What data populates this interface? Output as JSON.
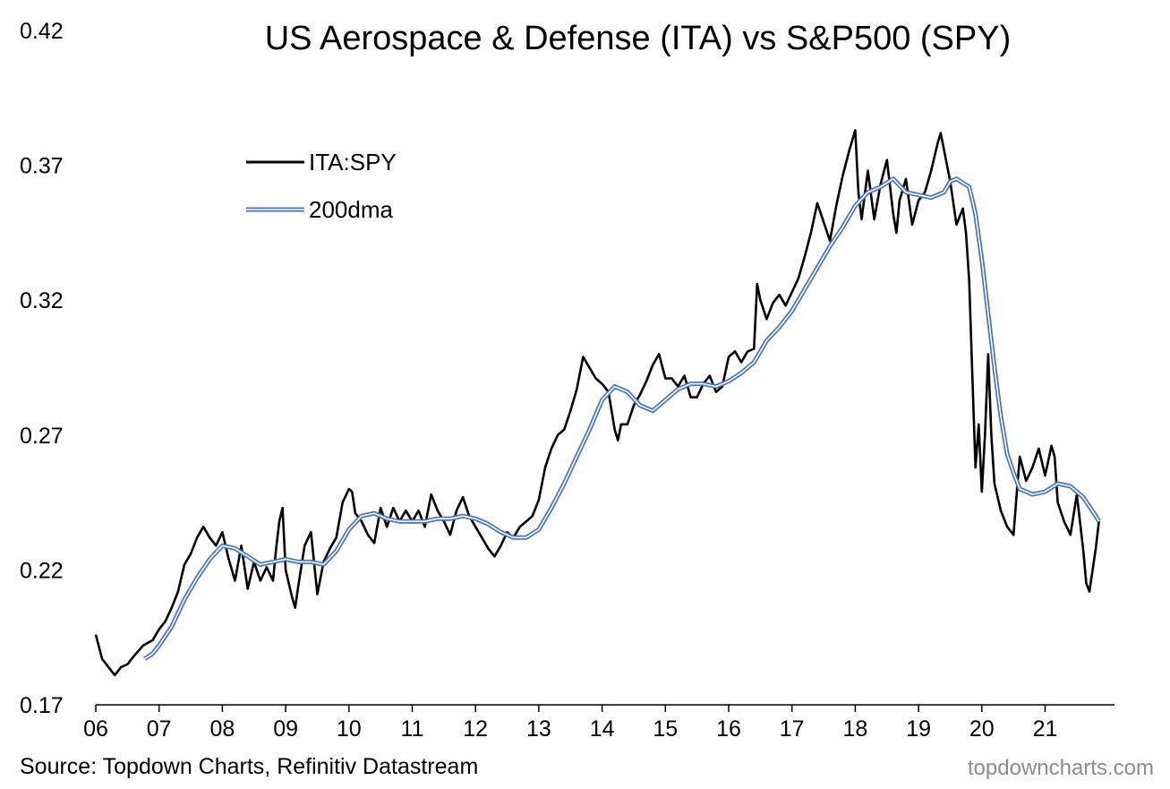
{
  "chart_data": {
    "type": "line",
    "title": "US Aerospace & Defense (ITA) vs S&P500 (SPY)",
    "xlabel": "",
    "ylabel": "",
    "x_ticks": [
      "06",
      "07",
      "08",
      "09",
      "10",
      "11",
      "12",
      "13",
      "14",
      "15",
      "16",
      "17",
      "18",
      "19",
      "20",
      "21"
    ],
    "xlim": [
      2006.0,
      2021.9
    ],
    "ylim": [
      0.17,
      0.42
    ],
    "y_ticks": [
      0.17,
      0.22,
      0.27,
      0.32,
      0.37,
      0.42
    ],
    "grid": false,
    "legend_position": "top-left",
    "series": [
      {
        "name": "ITA:SPY",
        "color": "#000000",
        "points": [
          [
            2006.0,
            0.196
          ],
          [
            2006.1,
            0.187
          ],
          [
            2006.2,
            0.184
          ],
          [
            2006.3,
            0.181
          ],
          [
            2006.4,
            0.184
          ],
          [
            2006.5,
            0.185
          ],
          [
            2006.6,
            0.188
          ],
          [
            2006.75,
            0.192
          ],
          [
            2006.9,
            0.194
          ],
          [
            2007.0,
            0.198
          ],
          [
            2007.1,
            0.201
          ],
          [
            2007.2,
            0.206
          ],
          [
            2007.3,
            0.212
          ],
          [
            2007.4,
            0.222
          ],
          [
            2007.5,
            0.226
          ],
          [
            2007.6,
            0.232
          ],
          [
            2007.7,
            0.236
          ],
          [
            2007.8,
            0.232
          ],
          [
            2007.9,
            0.229
          ],
          [
            2008.0,
            0.234
          ],
          [
            2008.1,
            0.224
          ],
          [
            2008.2,
            0.216
          ],
          [
            2008.3,
            0.229
          ],
          [
            2008.4,
            0.213
          ],
          [
            2008.5,
            0.223
          ],
          [
            2008.6,
            0.216
          ],
          [
            2008.7,
            0.221
          ],
          [
            2008.8,
            0.216
          ],
          [
            2008.85,
            0.228
          ],
          [
            2008.9,
            0.238
          ],
          [
            2008.95,
            0.243
          ],
          [
            2009.0,
            0.22
          ],
          [
            2009.1,
            0.21
          ],
          [
            2009.15,
            0.206
          ],
          [
            2009.2,
            0.214
          ],
          [
            2009.3,
            0.229
          ],
          [
            2009.4,
            0.234
          ],
          [
            2009.5,
            0.211
          ],
          [
            2009.6,
            0.223
          ],
          [
            2009.7,
            0.228
          ],
          [
            2009.8,
            0.232
          ],
          [
            2009.9,
            0.245
          ],
          [
            2010.0,
            0.25
          ],
          [
            2010.05,
            0.249
          ],
          [
            2010.1,
            0.241
          ],
          [
            2010.2,
            0.238
          ],
          [
            2010.3,
            0.233
          ],
          [
            2010.4,
            0.23
          ],
          [
            2010.5,
            0.243
          ],
          [
            2010.6,
            0.236
          ],
          [
            2010.7,
            0.243
          ],
          [
            2010.8,
            0.238
          ],
          [
            2010.9,
            0.242
          ],
          [
            2011.0,
            0.238
          ],
          [
            2011.1,
            0.242
          ],
          [
            2011.2,
            0.236
          ],
          [
            2011.3,
            0.248
          ],
          [
            2011.4,
            0.242
          ],
          [
            2011.5,
            0.238
          ],
          [
            2011.6,
            0.233
          ],
          [
            2011.7,
            0.242
          ],
          [
            2011.8,
            0.247
          ],
          [
            2011.9,
            0.24
          ],
          [
            2012.0,
            0.236
          ],
          [
            2012.1,
            0.232
          ],
          [
            2012.2,
            0.228
          ],
          [
            2012.3,
            0.225
          ],
          [
            2012.4,
            0.229
          ],
          [
            2012.5,
            0.234
          ],
          [
            2012.6,
            0.232
          ],
          [
            2012.7,
            0.236
          ],
          [
            2012.8,
            0.238
          ],
          [
            2012.9,
            0.24
          ],
          [
            2013.0,
            0.246
          ],
          [
            2013.1,
            0.258
          ],
          [
            2013.2,
            0.265
          ],
          [
            2013.3,
            0.27
          ],
          [
            2013.4,
            0.272
          ],
          [
            2013.5,
            0.279
          ],
          [
            2013.6,
            0.287
          ],
          [
            2013.7,
            0.299
          ],
          [
            2013.8,
            0.295
          ],
          [
            2013.9,
            0.291
          ],
          [
            2014.0,
            0.289
          ],
          [
            2014.1,
            0.286
          ],
          [
            2014.2,
            0.272
          ],
          [
            2014.25,
            0.268
          ],
          [
            2014.3,
            0.274
          ],
          [
            2014.4,
            0.274
          ],
          [
            2014.5,
            0.281
          ],
          [
            2014.6,
            0.285
          ],
          [
            2014.7,
            0.29
          ],
          [
            2014.8,
            0.296
          ],
          [
            2014.9,
            0.3
          ],
          [
            2015.0,
            0.291
          ],
          [
            2015.1,
            0.291
          ],
          [
            2015.2,
            0.288
          ],
          [
            2015.3,
            0.292
          ],
          [
            2015.4,
            0.284
          ],
          [
            2015.5,
            0.284
          ],
          [
            2015.6,
            0.289
          ],
          [
            2015.7,
            0.292
          ],
          [
            2015.8,
            0.286
          ],
          [
            2015.9,
            0.288
          ],
          [
            2016.0,
            0.299
          ],
          [
            2016.1,
            0.301
          ],
          [
            2016.2,
            0.297
          ],
          [
            2016.3,
            0.301
          ],
          [
            2016.4,
            0.302
          ],
          [
            2016.45,
            0.326
          ],
          [
            2016.5,
            0.32
          ],
          [
            2016.6,
            0.313
          ],
          [
            2016.7,
            0.319
          ],
          [
            2016.8,
            0.322
          ],
          [
            2016.9,
            0.318
          ],
          [
            2017.0,
            0.323
          ],
          [
            2017.1,
            0.328
          ],
          [
            2017.2,
            0.336
          ],
          [
            2017.3,
            0.345
          ],
          [
            2017.4,
            0.356
          ],
          [
            2017.5,
            0.349
          ],
          [
            2017.6,
            0.342
          ],
          [
            2017.7,
            0.355
          ],
          [
            2017.8,
            0.366
          ],
          [
            2017.9,
            0.375
          ],
          [
            2018.0,
            0.383
          ],
          [
            2018.05,
            0.36
          ],
          [
            2018.1,
            0.35
          ],
          [
            2018.2,
            0.368
          ],
          [
            2018.3,
            0.35
          ],
          [
            2018.4,
            0.363
          ],
          [
            2018.5,
            0.372
          ],
          [
            2018.6,
            0.352
          ],
          [
            2018.65,
            0.345
          ],
          [
            2018.7,
            0.357
          ],
          [
            2018.8,
            0.365
          ],
          [
            2018.9,
            0.348
          ],
          [
            2019.0,
            0.357
          ],
          [
            2019.1,
            0.36
          ],
          [
            2019.2,
            0.368
          ],
          [
            2019.3,
            0.378
          ],
          [
            2019.35,
            0.382
          ],
          [
            2019.4,
            0.376
          ],
          [
            2019.5,
            0.364
          ],
          [
            2019.6,
            0.348
          ],
          [
            2019.7,
            0.354
          ],
          [
            2019.75,
            0.345
          ],
          [
            2019.8,
            0.327
          ],
          [
            2019.85,
            0.292
          ],
          [
            2019.9,
            0.258
          ],
          [
            2019.95,
            0.274
          ],
          [
            2020.0,
            0.249
          ],
          [
            2020.05,
            0.27
          ],
          [
            2020.1,
            0.3
          ],
          [
            2020.15,
            0.27
          ],
          [
            2020.2,
            0.252
          ],
          [
            2020.3,
            0.242
          ],
          [
            2020.4,
            0.236
          ],
          [
            2020.5,
            0.233
          ],
          [
            2020.55,
            0.248
          ],
          [
            2020.6,
            0.262
          ],
          [
            2020.7,
            0.253
          ],
          [
            2020.8,
            0.258
          ],
          [
            2020.9,
            0.265
          ],
          [
            2021.0,
            0.255
          ],
          [
            2021.1,
            0.266
          ],
          [
            2021.15,
            0.262
          ],
          [
            2021.2,
            0.245
          ],
          [
            2021.3,
            0.238
          ],
          [
            2021.4,
            0.233
          ],
          [
            2021.5,
            0.248
          ],
          [
            2021.55,
            0.238
          ],
          [
            2021.6,
            0.228
          ],
          [
            2021.65,
            0.215
          ],
          [
            2021.7,
            0.212
          ],
          [
            2021.8,
            0.228
          ],
          [
            2021.85,
            0.238
          ]
        ]
      },
      {
        "name": "200dma",
        "color": "#4472c4",
        "points": [
          [
            2006.77,
            0.187
          ],
          [
            2006.9,
            0.189
          ],
          [
            2007.0,
            0.192
          ],
          [
            2007.2,
            0.199
          ],
          [
            2007.4,
            0.209
          ],
          [
            2007.6,
            0.217
          ],
          [
            2007.8,
            0.224
          ],
          [
            2008.0,
            0.229
          ],
          [
            2008.2,
            0.228
          ],
          [
            2008.4,
            0.225
          ],
          [
            2008.6,
            0.222
          ],
          [
            2008.8,
            0.223
          ],
          [
            2009.0,
            0.224
          ],
          [
            2009.2,
            0.223
          ],
          [
            2009.4,
            0.223
          ],
          [
            2009.6,
            0.222
          ],
          [
            2009.8,
            0.227
          ],
          [
            2010.0,
            0.235
          ],
          [
            2010.2,
            0.24
          ],
          [
            2010.4,
            0.241
          ],
          [
            2010.6,
            0.239
          ],
          [
            2010.8,
            0.238
          ],
          [
            2011.0,
            0.238
          ],
          [
            2011.2,
            0.238
          ],
          [
            2011.4,
            0.239
          ],
          [
            2011.6,
            0.239
          ],
          [
            2011.8,
            0.24
          ],
          [
            2012.0,
            0.239
          ],
          [
            2012.2,
            0.237
          ],
          [
            2012.4,
            0.234
          ],
          [
            2012.6,
            0.232
          ],
          [
            2012.8,
            0.232
          ],
          [
            2013.0,
            0.235
          ],
          [
            2013.2,
            0.243
          ],
          [
            2013.4,
            0.252
          ],
          [
            2013.6,
            0.262
          ],
          [
            2013.8,
            0.272
          ],
          [
            2014.0,
            0.283
          ],
          [
            2014.2,
            0.288
          ],
          [
            2014.4,
            0.286
          ],
          [
            2014.6,
            0.281
          ],
          [
            2014.8,
            0.279
          ],
          [
            2015.0,
            0.283
          ],
          [
            2015.2,
            0.287
          ],
          [
            2015.4,
            0.289
          ],
          [
            2015.6,
            0.289
          ],
          [
            2015.8,
            0.288
          ],
          [
            2016.0,
            0.29
          ],
          [
            2016.2,
            0.293
          ],
          [
            2016.4,
            0.297
          ],
          [
            2016.6,
            0.305
          ],
          [
            2016.8,
            0.31
          ],
          [
            2017.0,
            0.316
          ],
          [
            2017.2,
            0.324
          ],
          [
            2017.4,
            0.332
          ],
          [
            2017.6,
            0.34
          ],
          [
            2017.8,
            0.347
          ],
          [
            2018.0,
            0.355
          ],
          [
            2018.2,
            0.36
          ],
          [
            2018.4,
            0.362
          ],
          [
            2018.6,
            0.365
          ],
          [
            2018.8,
            0.36
          ],
          [
            2019.0,
            0.359
          ],
          [
            2019.2,
            0.358
          ],
          [
            2019.4,
            0.36
          ],
          [
            2019.5,
            0.364
          ],
          [
            2019.6,
            0.365
          ],
          [
            2019.8,
            0.362
          ],
          [
            2019.9,
            0.352
          ],
          [
            2020.0,
            0.335
          ],
          [
            2020.1,
            0.315
          ],
          [
            2020.2,
            0.295
          ],
          [
            2020.3,
            0.277
          ],
          [
            2020.4,
            0.263
          ],
          [
            2020.5,
            0.256
          ],
          [
            2020.6,
            0.25
          ],
          [
            2020.8,
            0.248
          ],
          [
            2021.0,
            0.249
          ],
          [
            2021.2,
            0.252
          ],
          [
            2021.4,
            0.251
          ],
          [
            2021.6,
            0.247
          ],
          [
            2021.8,
            0.24
          ],
          [
            2021.85,
            0.238
          ]
        ]
      }
    ]
  },
  "source": "Source: Topdown Charts, Refinitiv Datastream",
  "watermark": "topdowncharts.com"
}
